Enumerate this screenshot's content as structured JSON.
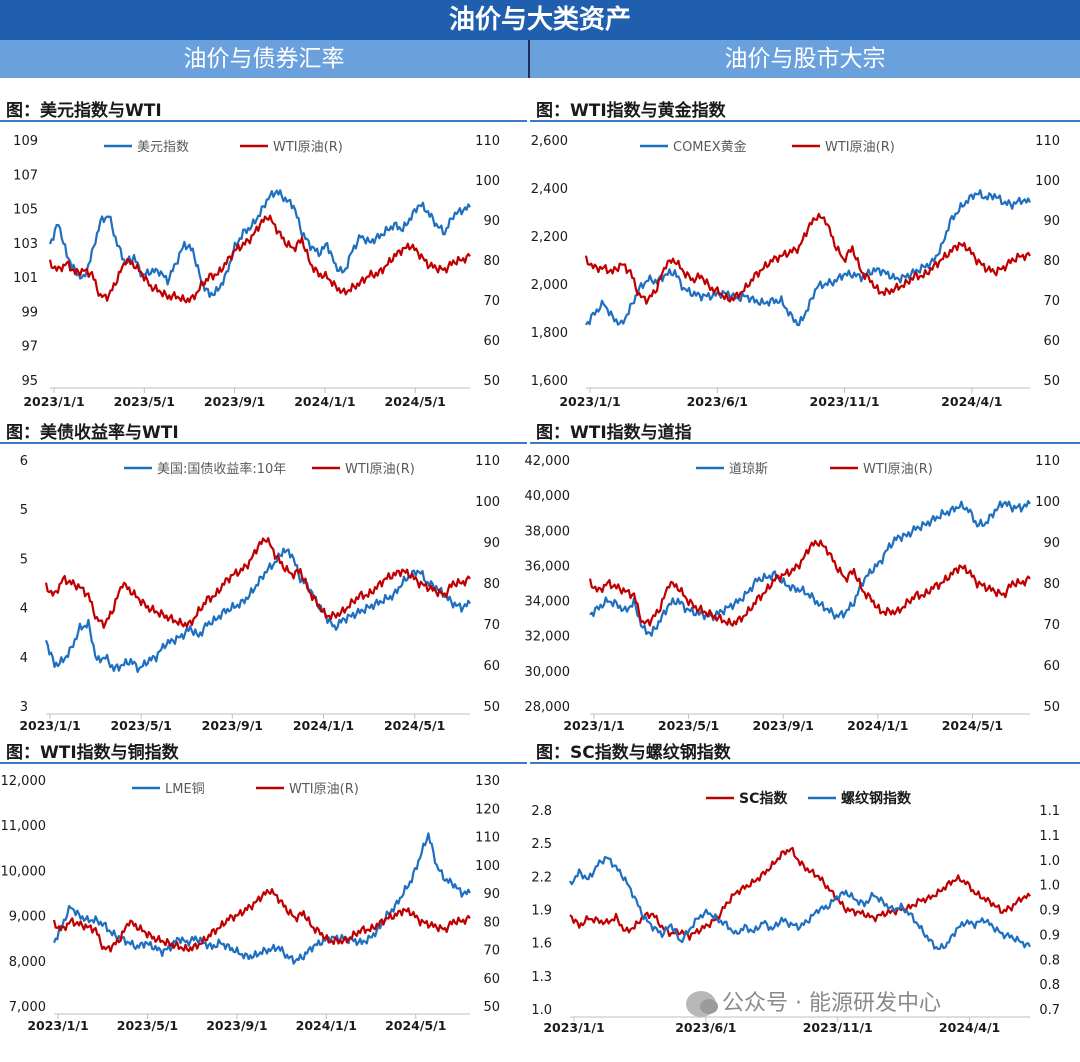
{
  "header": {
    "title": "油价与大类资产",
    "left_section": "油价与债券汇率",
    "right_section": "油价与股市大宗"
  },
  "watermark": {
    "icon": "wechat-icon",
    "text": "公众号 · 能源研发中心"
  },
  "colors": {
    "blue": "#1f6fc1",
    "red": "#c00000",
    "banner": "#1f5fad",
    "subheader": "#6aa1dd"
  },
  "chart_data": [
    {
      "id": "dxy_wti",
      "type": "line",
      "title": "图：美元指数与WTI",
      "xticks": [
        "2023/1/1",
        "2023/5/1",
        "2023/9/1",
        "2024/1/1",
        "2024/5/1"
      ],
      "yticks_left": [
        "95",
        "97",
        "99",
        "101",
        "103",
        "105",
        "107",
        "109"
      ],
      "ylim_left": [
        95,
        110
      ],
      "yticks_right": [
        "50",
        "60",
        "70",
        "80",
        "90",
        "100",
        "110"
      ],
      "ylim_right": [
        50,
        110
      ],
      "legend_style": "plain",
      "series": [
        {
          "name": "美元指数",
          "axis": "left",
          "color": "#1f6fc1",
          "values": [
            103.5,
            104.8,
            102.8,
            101.8,
            101.3,
            102.9,
            104.9,
            105.3,
            103.5,
            102.3,
            102.7,
            101.5,
            101.8,
            101.8,
            101.2,
            102.3,
            103.5,
            103.1,
            101.2,
            100.3,
            100.6,
            101.6,
            103.3,
            104.2,
            104.6,
            105.4,
            106.4,
            106.8,
            106.3,
            105.9,
            104.2,
            103.4,
            102.9,
            103.5,
            102.1,
            101.7,
            103.1,
            104.0,
            103.6,
            103.9,
            104.3,
            104.7,
            104.4,
            105.2,
            106.0,
            105.5,
            104.7,
            104.2,
            105.3,
            105.6,
            105.8
          ]
        },
        {
          "name": "WTI原油(R)",
          "axis": "right",
          "color": "#c00000",
          "values": [
            79.0,
            77.5,
            79.2,
            76.8,
            77.4,
            76.5,
            70.8,
            71.0,
            75.2,
            80.0,
            78.8,
            76.5,
            73.3,
            72.3,
            70.8,
            71.0,
            69.9,
            70.4,
            73.5,
            75.9,
            76.5,
            79.4,
            82.4,
            83.8,
            85.6,
            89.0,
            91.0,
            87.7,
            84.4,
            82.8,
            85.2,
            79.0,
            76.4,
            75.8,
            73.3,
            71.8,
            73.0,
            74.4,
            76.2,
            76.5,
            78.5,
            81.0,
            82.7,
            83.6,
            81.4,
            78.9,
            78.0,
            77.5,
            79.5,
            80.0,
            80.9
          ]
        }
      ]
    },
    {
      "id": "gold_wti",
      "type": "line",
      "title": "图：WTI指数与黄金指数",
      "xticks": [
        "2023/1/1",
        "2023/6/1",
        "2023/11/1",
        "2024/4/1"
      ],
      "yticks_left": [
        "1,600",
        "1,800",
        "2,000",
        "2,200",
        "2,400",
        "2,600"
      ],
      "ylim_left": [
        1600,
        2600
      ],
      "yticks_right": [
        "50",
        "60",
        "70",
        "80",
        "90",
        "100",
        "110"
      ],
      "ylim_right": [
        50,
        110
      ],
      "legend_style": "plain",
      "series": [
        {
          "name": "COMEX黄金",
          "axis": "left",
          "color": "#1f6fc1",
          "values": [
            1830,
            1880,
            1920,
            1860,
            1830,
            1900,
            1980,
            2020,
            2010,
            2040,
            2050,
            1980,
            1960,
            1950,
            1950,
            1960,
            1960,
            1940,
            1950,
            1930,
            1920,
            1930,
            1930,
            1870,
            1830,
            1900,
            1990,
            2000,
            2010,
            2040,
            2040,
            2030,
            2050,
            2060,
            2040,
            2020,
            2030,
            2050,
            2070,
            2090,
            2150,
            2260,
            2310,
            2350,
            2380,
            2360,
            2370,
            2340,
            2330,
            2350,
            2340
          ]
        },
        {
          "name": "WTI原油(R)",
          "axis": "right",
          "color": "#c00000",
          "values": [
            80,
            78,
            78,
            77,
            79,
            77,
            71,
            70,
            73,
            79,
            80,
            77,
            75,
            76,
            73,
            72,
            70,
            71,
            73,
            76,
            78,
            80,
            81,
            82,
            83,
            88,
            91,
            90,
            84,
            80,
            83,
            77,
            75,
            72,
            72,
            73,
            74,
            76,
            76,
            78,
            80,
            82,
            84,
            83,
            80,
            78,
            77,
            78,
            80,
            81,
            81
          ]
        }
      ]
    },
    {
      "id": "ust_wti",
      "type": "line",
      "title": "图：美债收益率与WTI",
      "xticks": [
        "2023/1/1",
        "2023/5/1",
        "2023/9/1",
        "2024/1/1",
        "2024/5/1"
      ],
      "yticks_left": [
        "3",
        "4",
        "4",
        "5",
        "5",
        "6"
      ],
      "ylim_left": [
        3,
        6
      ],
      "yticks_right": [
        "50",
        "60",
        "70",
        "80",
        "90",
        "100",
        "110"
      ],
      "ylim_right": [
        50,
        110
      ],
      "legend_style": "plain",
      "series": [
        {
          "name": "美国:国债收益率:10年",
          "axis": "left",
          "color": "#1f6fc1",
          "values": [
            3.8,
            3.5,
            3.55,
            3.7,
            3.95,
            4.0,
            3.55,
            3.6,
            3.45,
            3.5,
            3.55,
            3.45,
            3.55,
            3.6,
            3.75,
            3.8,
            3.85,
            3.95,
            3.85,
            4.0,
            4.05,
            4.15,
            4.2,
            4.25,
            4.35,
            4.5,
            4.65,
            4.75,
            4.9,
            4.85,
            4.55,
            4.45,
            4.25,
            4.1,
            3.95,
            4.05,
            4.1,
            4.15,
            4.2,
            4.25,
            4.3,
            4.35,
            4.5,
            4.6,
            4.65,
            4.5,
            4.45,
            4.35,
            4.25,
            4.2,
            4.25
          ]
        },
        {
          "name": "WTI原油(R)",
          "axis": "right",
          "color": "#c00000",
          "values": [
            79,
            77,
            81,
            80,
            79,
            77,
            71,
            70,
            74,
            80,
            78,
            76,
            74,
            73,
            72,
            71,
            70,
            70,
            73,
            76,
            77,
            80,
            82,
            83,
            85,
            89,
            91,
            87,
            84,
            82,
            83,
            78,
            75,
            72,
            72,
            73,
            75,
            77,
            77,
            79,
            81,
            82,
            83,
            82,
            80,
            79,
            78,
            77,
            80,
            80,
            81
          ]
        }
      ]
    },
    {
      "id": "dow_wti",
      "type": "line",
      "title": "图：WTI指数与道指",
      "xticks": [
        "2023/1/1",
        "2023/5/1",
        "2023/9/1",
        "2024/1/1",
        "2024/5/1"
      ],
      "yticks_left": [
        "28,000",
        "30,000",
        "32,000",
        "34,000",
        "36,000",
        "38,000",
        "40,000",
        "42,000"
      ],
      "ylim_left": [
        28000,
        42000
      ],
      "yticks_right": [
        "50",
        "60",
        "70",
        "80",
        "90",
        "100",
        "110"
      ],
      "ylim_right": [
        50,
        110
      ],
      "legend_style": "plain",
      "series": [
        {
          "name": "道琼斯",
          "axis": "left",
          "color": "#1f6fc1",
          "values": [
            33200,
            33600,
            34000,
            33800,
            33400,
            33900,
            32400,
            32100,
            32900,
            33800,
            34000,
            33500,
            33300,
            33200,
            33100,
            33400,
            33700,
            34000,
            34500,
            35200,
            35300,
            35500,
            35000,
            34700,
            34600,
            34300,
            33800,
            33500,
            33100,
            33300,
            33900,
            35100,
            35700,
            36200,
            37100,
            37600,
            37700,
            38100,
            38300,
            38600,
            38900,
            39100,
            39400,
            39200,
            38300,
            38400,
            39100,
            39600,
            39300,
            39300,
            39500
          ]
        },
        {
          "name": "WTI原油(R)",
          "axis": "right",
          "color": "#c00000",
          "values": [
            80,
            78,
            80,
            79,
            78,
            77,
            70,
            71,
            74,
            80,
            79,
            76,
            74,
            73,
            72,
            71,
            70,
            71,
            73,
            76,
            78,
            81,
            82,
            83,
            85,
            89,
            90,
            88,
            84,
            81,
            83,
            78,
            76,
            73,
            73,
            73,
            75,
            77,
            77,
            79,
            80,
            82,
            84,
            83,
            80,
            79,
            78,
            77,
            80,
            80,
            81
          ]
        }
      ]
    },
    {
      "id": "copper_wti",
      "type": "line",
      "title": "图：WTI指数与铜指数",
      "xticks": [
        "2023/1/1",
        "2023/5/1",
        "2023/9/1",
        "2024/1/1",
        "2024/5/1"
      ],
      "yticks_left": [
        "7,000",
        "8,000",
        "9,000",
        "10,000",
        "11,000",
        "12,000"
      ],
      "ylim_left": [
        7000,
        12000
      ],
      "yticks_right": [
        "50",
        "60",
        "70",
        "80",
        "90",
        "100",
        "110",
        "120",
        "130"
      ],
      "ylim_right": [
        50,
        130
      ],
      "legend_style": "plain",
      "series": [
        {
          "name": "LME铜",
          "axis": "left",
          "color": "#1f6fc1",
          "values": [
            8400,
            8800,
            9200,
            9000,
            8900,
            8900,
            8800,
            8600,
            8500,
            8400,
            8300,
            8400,
            8300,
            8200,
            8300,
            8500,
            8400,
            8500,
            8400,
            8300,
            8400,
            8300,
            8200,
            8100,
            8100,
            8200,
            8250,
            8300,
            8100,
            8000,
            8100,
            8300,
            8400,
            8500,
            8500,
            8500,
            8450,
            8400,
            8500,
            8700,
            9000,
            9200,
            9500,
            9800,
            10300,
            10800,
            10100,
            9800,
            9700,
            9500,
            9500
          ]
        },
        {
          "name": "WTI原油(R)",
          "axis": "right",
          "color": "#c00000",
          "values": [
            79,
            77,
            80,
            79,
            78,
            77,
            70,
            71,
            74,
            80,
            78,
            76,
            74,
            73,
            72,
            71,
            70,
            71,
            73,
            76,
            78,
            81,
            82,
            84,
            86,
            89,
            91,
            88,
            84,
            81,
            83,
            78,
            76,
            73,
            73,
            73,
            75,
            77,
            77,
            79,
            81,
            82,
            84,
            83,
            80,
            79,
            78,
            77,
            80,
            80,
            81
          ]
        }
      ]
    },
    {
      "id": "sc_rebar",
      "type": "line",
      "title": "图：SC指数与螺纹钢指数",
      "xticks": [
        "2023/1/1",
        "2023/6/1",
        "2023/11/1",
        "2024/4/1"
      ],
      "yticks_left": [
        "1.0",
        "1.3",
        "1.6",
        "1.9",
        "2.2",
        "2.5",
        "2.8"
      ],
      "ylim_left": [
        1.0,
        2.8
      ],
      "yticks_right": [
        "0.7",
        "0.8",
        "0.8",
        "0.9",
        "0.9",
        "1.0",
        "1.0",
        "1.1",
        "1.1"
      ],
      "ylim_right": [
        0.7,
        1.1
      ],
      "legend_style": "bold",
      "series": [
        {
          "name": "SC指数",
          "axis": "left",
          "color": "#c00000",
          "values": [
            1.85,
            1.75,
            1.82,
            1.8,
            1.78,
            1.83,
            1.7,
            1.74,
            1.84,
            1.86,
            1.74,
            1.68,
            1.7,
            1.66,
            1.71,
            1.76,
            1.82,
            1.95,
            2.05,
            2.1,
            2.15,
            2.22,
            2.3,
            2.4,
            2.45,
            2.32,
            2.25,
            2.2,
            2.1,
            2.0,
            1.9,
            1.88,
            1.86,
            1.82,
            1.86,
            1.88,
            1.9,
            1.92,
            1.98,
            2.0,
            2.05,
            2.12,
            2.18,
            2.15,
            2.05,
            2.0,
            1.95,
            1.88,
            1.92,
            2.0,
            2.02
          ]
        },
        {
          "name": "螺纹钢指数",
          "axis": "right",
          "color": "#1f6fc1",
          "values": [
            0.95,
            0.975,
            0.96,
            0.99,
            1.005,
            0.985,
            0.96,
            0.925,
            0.885,
            0.865,
            0.85,
            0.87,
            0.835,
            0.86,
            0.885,
            0.895,
            0.88,
            0.87,
            0.85,
            0.865,
            0.855,
            0.875,
            0.86,
            0.88,
            0.87,
            0.865,
            0.88,
            0.9,
            0.905,
            0.925,
            0.935,
            0.92,
            0.91,
            0.93,
            0.915,
            0.9,
            0.905,
            0.89,
            0.865,
            0.84,
            0.82,
            0.83,
            0.86,
            0.875,
            0.87,
            0.88,
            0.865,
            0.85,
            0.845,
            0.835,
            0.825
          ]
        }
      ]
    }
  ]
}
